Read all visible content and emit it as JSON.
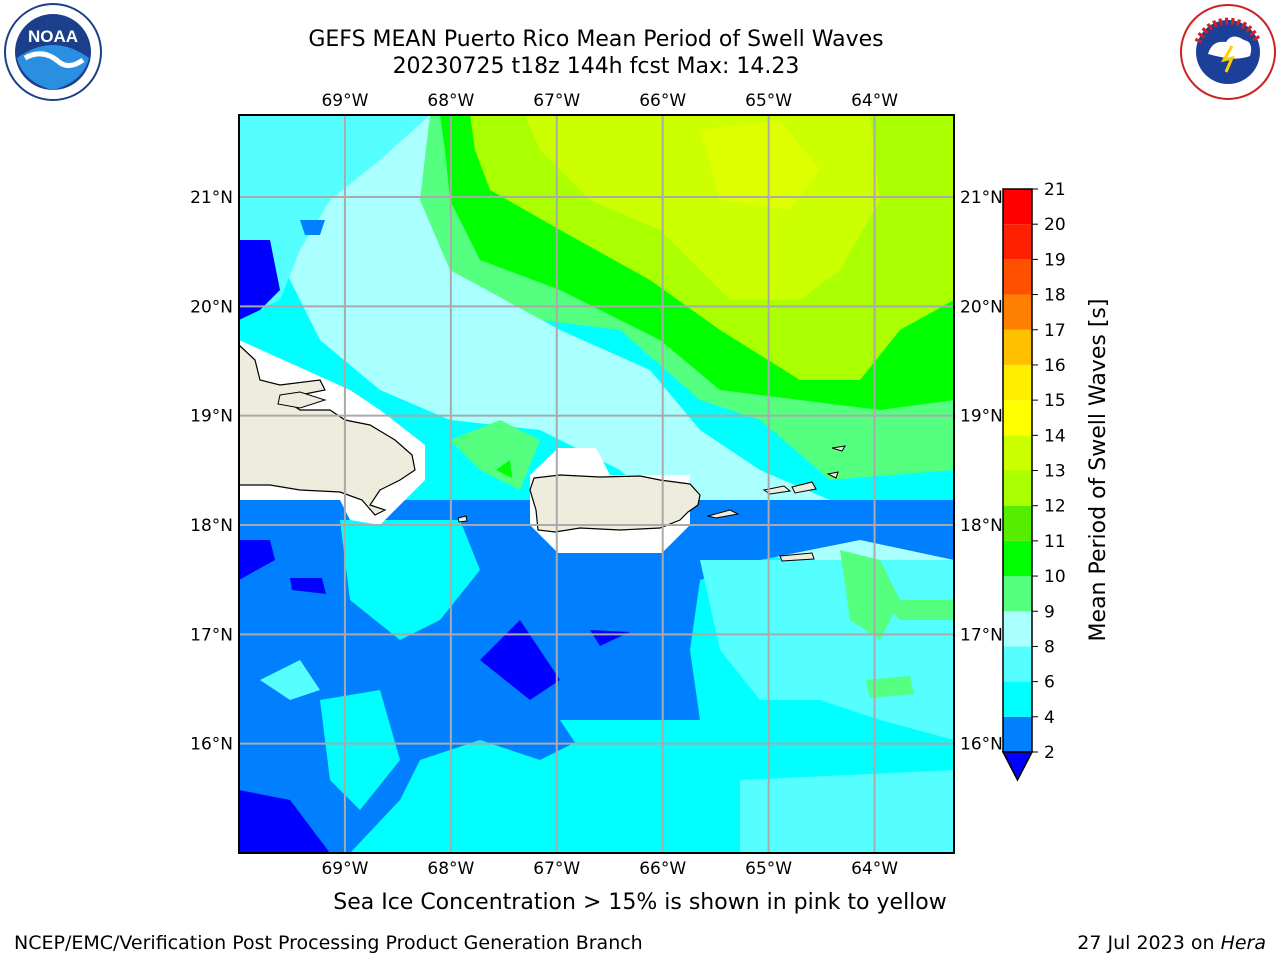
{
  "title": {
    "line1": "GEFS MEAN Puerto Rico Mean Period of Swell Waves",
    "line2": "20230725 t18z 144h fcst   Max: 14.23"
  },
  "logos": {
    "left": "noaa-logo",
    "right": "national-weather-service-logo",
    "left_text": "NOAA",
    "right_text": "NATIONAL WEATHER SERVICE"
  },
  "map": {
    "lon_ticks": [
      "69°W",
      "68°W",
      "67°W",
      "66°W",
      "65°W",
      "64°W"
    ],
    "lat_ticks": [
      "21°N",
      "20°N",
      "19°N",
      "18°N",
      "17°N",
      "16°N"
    ],
    "lon_range": [
      -70.0,
      -63.25
    ],
    "lat_range": [
      15.0,
      21.75
    ],
    "grid": true,
    "land_color": "#eeecdc",
    "regions": [
      "Hispaniola",
      "Puerto Rico",
      "Virgin Islands"
    ]
  },
  "colorbar": {
    "label": "Mean Period of Swell Waves [s]",
    "levels": [
      "2",
      "4",
      "6",
      "8",
      "9",
      "10",
      "11",
      "12",
      "13",
      "14",
      "15",
      "16",
      "17",
      "18",
      "19",
      "20",
      "21"
    ],
    "colors": [
      "#0000ff",
      "#0080ff",
      "#00ffff",
      "#55ffff",
      "#aaffff",
      "#55ff80",
      "#00ff00",
      "#55ee00",
      "#aaff00",
      "#ccff00",
      "#ffff00",
      "#ffee00",
      "#ffc000",
      "#ff8000",
      "#ff5000",
      "#ff2000",
      "#ff0000"
    ],
    "extend": "min"
  },
  "caption": "Sea Ice Concentration > 15% is shown in pink to yellow",
  "footer": {
    "left": "NCEP/EMC/Verification Post Processing Product Generation Branch",
    "right_prefix": "27 Jul 2023 on ",
    "right_host": "Hera"
  }
}
